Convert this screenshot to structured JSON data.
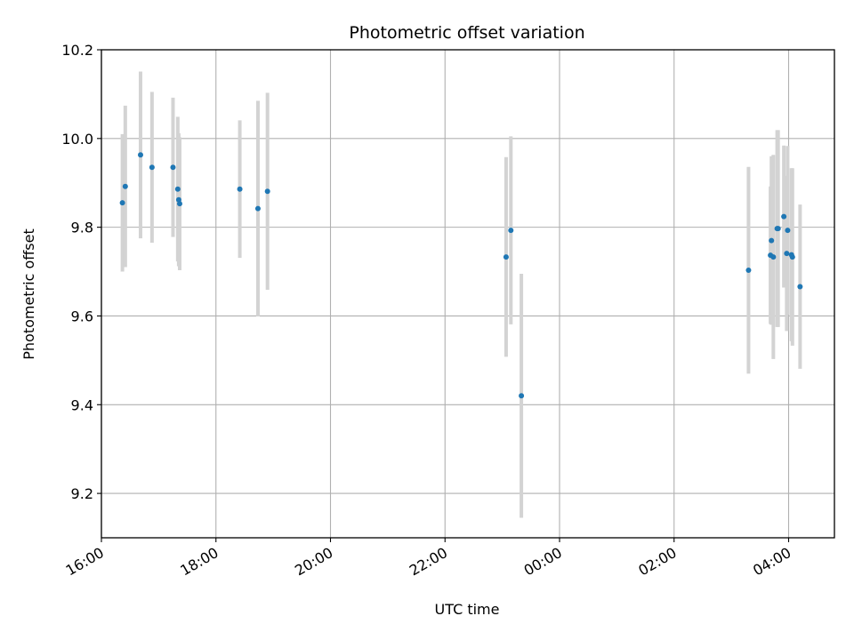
{
  "chart_data": {
    "type": "scatter",
    "title": "Photometric offset variation",
    "xlabel": "UTC time",
    "ylabel": "Photometric offset",
    "x_axis_kind": "time",
    "xlim": [
      "16:00",
      "04:48"
    ],
    "ylim": [
      9.1,
      10.2
    ],
    "x_ticks": [
      "16:00",
      "18:00",
      "20:00",
      "22:00",
      "00:00",
      "02:00",
      "04:00"
    ],
    "y_ticks": [
      9.2,
      9.4,
      9.6,
      9.8,
      10.0,
      10.2
    ],
    "grid": true,
    "legend": "none",
    "colors": {
      "point": "#1f77b4",
      "errorbar": "#d3d3d3",
      "grid": "#b0b0b0"
    },
    "points": [
      {
        "t": "16:22",
        "y": 9.855,
        "err": 0.155
      },
      {
        "t": "16:25",
        "y": 9.892,
        "err": 0.182
      },
      {
        "t": "16:41",
        "y": 9.963,
        "err": 0.188
      },
      {
        "t": "16:53",
        "y": 9.935,
        "err": 0.17
      },
      {
        "t": "17:15",
        "y": 9.935,
        "err": 0.157
      },
      {
        "t": "17:20",
        "y": 9.886,
        "err": 0.163
      },
      {
        "t": "17:21",
        "y": 9.862,
        "err": 0.15
      },
      {
        "t": "17:22",
        "y": 9.853,
        "err": 0.15
      },
      {
        "t": "18:25",
        "y": 9.886,
        "err": 0.155
      },
      {
        "t": "18:44",
        "y": 9.842,
        "err": 0.243
      },
      {
        "t": "18:54",
        "y": 9.881,
        "err": 0.222
      },
      {
        "t": "23:04",
        "y": 9.733,
        "err": 0.225
      },
      {
        "t": "23:09",
        "y": 9.793,
        "err": 0.212
      },
      {
        "t": "23:20",
        "y": 9.42,
        "err": 0.275
      },
      {
        "t": "03:18",
        "y": 9.703,
        "err": 0.233
      },
      {
        "t": "03:41",
        "y": 9.737,
        "err": 0.155
      },
      {
        "t": "03:42",
        "y": 9.77,
        "err": 0.19
      },
      {
        "t": "03:44",
        "y": 9.733,
        "err": 0.23
      },
      {
        "t": "03:48",
        "y": 9.797,
        "err": 0.222
      },
      {
        "t": "03:49",
        "y": 9.797,
        "err": 0.222
      },
      {
        "t": "03:55",
        "y": 9.824,
        "err": 0.16
      },
      {
        "t": "03:58",
        "y": 9.741,
        "err": 0.175
      },
      {
        "t": "03:59",
        "y": 9.793,
        "err": 0.19
      },
      {
        "t": "04:03",
        "y": 9.738,
        "err": 0.195
      },
      {
        "t": "04:04",
        "y": 9.733,
        "err": 0.2
      },
      {
        "t": "04:12",
        "y": 9.666,
        "err": 0.185
      }
    ]
  }
}
